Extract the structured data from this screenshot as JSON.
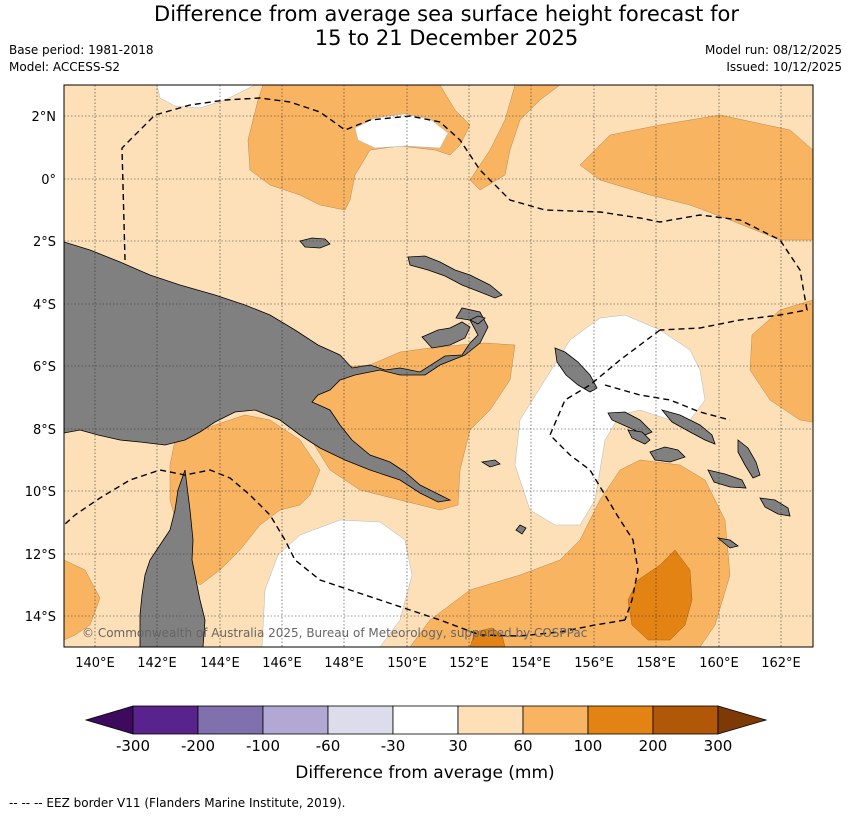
{
  "title": {
    "line1": "Difference from average sea surface height forecast for",
    "line2": "15 to 21 December 2025"
  },
  "meta": {
    "base_period": "Base period: 1981-2018",
    "model": "Model: ACCESS-S2",
    "model_run": "Model run: 08/12/2025",
    "issued": "Issued: 10/12/2025"
  },
  "map": {
    "lon_labels": [
      "140°E",
      "142°E",
      "144°E",
      "146°E",
      "148°E",
      "150°E",
      "152°E",
      "154°E",
      "156°E",
      "158°E",
      "160°E",
      "162°E"
    ],
    "lat_labels": [
      "2°N",
      "0°",
      "2°S",
      "4°S",
      "6°S",
      "8°S",
      "10°S",
      "12°S",
      "14°S"
    ],
    "attribution": "© Commonwealth of Australia 2025, Bureau of Meteorology, supported by COSPPac",
    "land_color": "#808080",
    "border_style": "dashed"
  },
  "colorbar": {
    "ticks": [
      "-300",
      "-200",
      "-100",
      "-60",
      "-30",
      "30",
      "60",
      "100",
      "200",
      "300"
    ],
    "colors": [
      "#3d0a5e",
      "#59238e",
      "#8070ae",
      "#b1a9d3",
      "#dcdcea",
      "#ffffff",
      "#fde0b7",
      "#f9b462",
      "#e28314",
      "#b25708",
      "#7d3a06"
    ],
    "label": "Difference from average (mm)"
  },
  "footer": "--  --  -- EEZ border V11 (Flanders Marine Institute, 2019)."
}
